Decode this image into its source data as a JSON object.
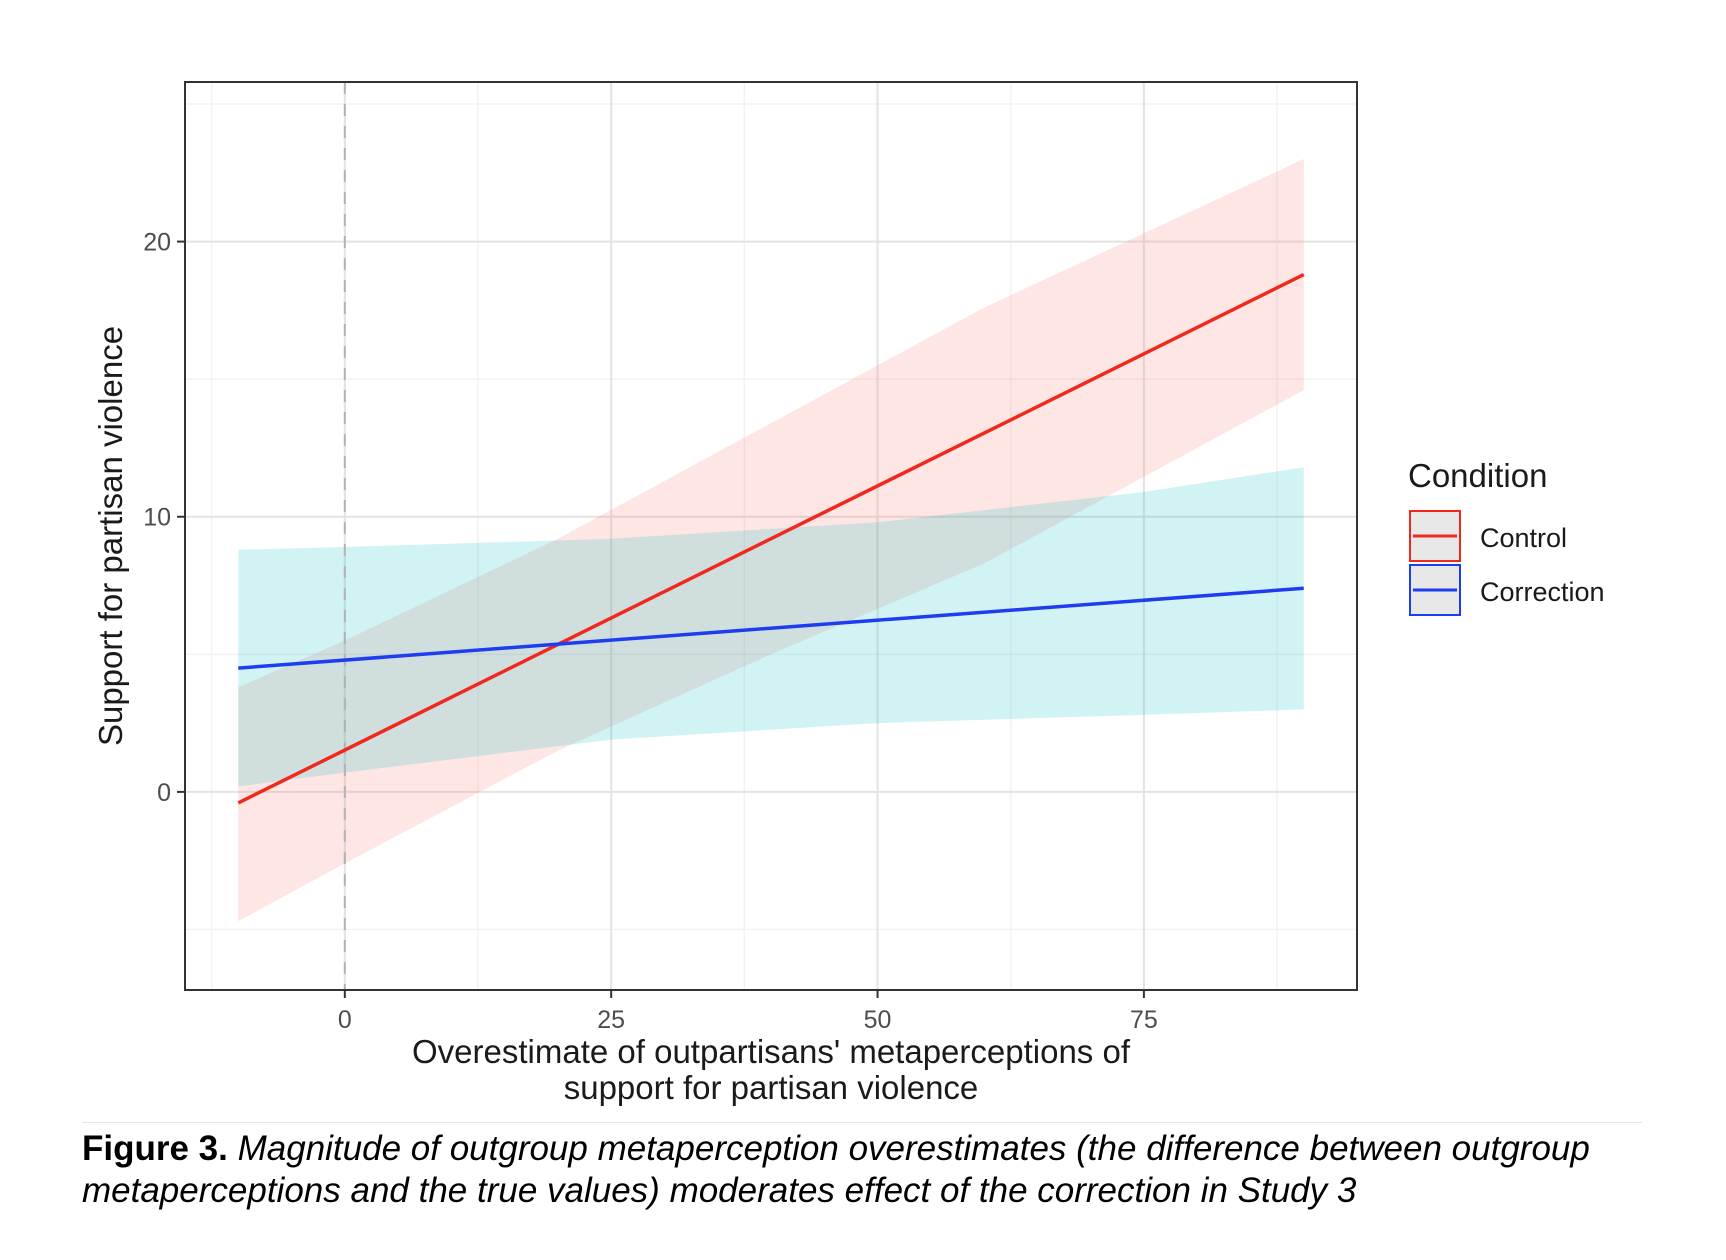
{
  "chart_data": {
    "type": "line",
    "x_range": [
      -15,
      95
    ],
    "y_range": [
      -7.2,
      25.8
    ],
    "x_ticks": [
      0,
      25,
      50,
      75
    ],
    "y_ticks": [
      0,
      10,
      20
    ],
    "x_tick_labels": [
      "0",
      "25",
      "50",
      "75"
    ],
    "y_tick_labels": [
      "0",
      "10",
      "20"
    ],
    "xlabel_line1": "Overestimate of outpartisans' metaperceptions of",
    "xlabel_line2": "support for partisan violence",
    "ylabel": "Support for partisan violence",
    "grid": true,
    "reference_line_x": 0,
    "legend": {
      "title": "Condition",
      "placement": "right"
    },
    "series": [
      {
        "name": "Control",
        "color": "#f0291e",
        "band_color": "#fde4e3",
        "x": [
          -10,
          90
        ],
        "y": [
          -0.4,
          18.8
        ],
        "band_x": [
          -10,
          0,
          20,
          40,
          60,
          90
        ],
        "band_lower": [
          -4.7,
          -2.6,
          1.5,
          5.0,
          8.3,
          14.6
        ],
        "band_upper": [
          3.8,
          5.5,
          9.2,
          13.4,
          17.6,
          23.0
        ]
      },
      {
        "name": "Correction",
        "color": "#1e3cf0",
        "band_color": "#dcf3f2",
        "x": [
          -10,
          90
        ],
        "y": [
          4.5,
          7.4
        ],
        "band_x": [
          -10,
          0,
          25,
          50,
          75,
          90
        ],
        "band_lower": [
          0.2,
          0.7,
          1.9,
          2.5,
          2.8,
          3.0
        ],
        "band_upper": [
          8.8,
          8.9,
          9.2,
          9.8,
          10.9,
          11.8
        ]
      }
    ]
  },
  "caption": {
    "label": "Figure 3.",
    "line1": "Magnitude of outgroup metaperception overestimates (the difference between outgroup",
    "line2": "metaperceptions and the true values) moderates effect of the correction in Study 3"
  }
}
